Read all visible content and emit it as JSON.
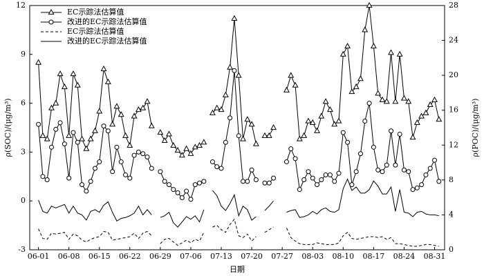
{
  "chart_data": {
    "type": "line",
    "x_label": "日期",
    "y_label": "ρ(SOC)/(μg/m³)",
    "y2_label": "ρ(POC)/(μg/m³)",
    "x": [
      0,
      1,
      2,
      3,
      4,
      5,
      6,
      7,
      8,
      9,
      10,
      11,
      12,
      13,
      14,
      15,
      16,
      17,
      18,
      19,
      20,
      21,
      22,
      23,
      24,
      25,
      26,
      27,
      28,
      29,
      30,
      31,
      32,
      33,
      34,
      35,
      36,
      37,
      38,
      39,
      40,
      41,
      42,
      43,
      44,
      45,
      46,
      47,
      48,
      49,
      50,
      51,
      52,
      53,
      54,
      55,
      56,
      57,
      58,
      59,
      60,
      61,
      62,
      63,
      64,
      65,
      66,
      67,
      68,
      69,
      70,
      71,
      72,
      73,
      74,
      75,
      76,
      77,
      78,
      79,
      80,
      81,
      82,
      83,
      84,
      85,
      86,
      87,
      88,
      89,
      90,
      91,
      92
    ],
    "xlim": [
      -2,
      93.3
    ],
    "xticks": [
      {
        "value": 0,
        "label": "06-01"
      },
      {
        "value": 7,
        "label": "06-08"
      },
      {
        "value": 14,
        "label": "06-15"
      },
      {
        "value": 21,
        "label": "06-22"
      },
      {
        "value": 28,
        "label": "06-29"
      },
      {
        "value": 35,
        "label": "07-06"
      },
      {
        "value": 42,
        "label": "07-13"
      },
      {
        "value": 49,
        "label": "07-20"
      },
      {
        "value": 56,
        "label": "07-27"
      },
      {
        "value": 63,
        "label": "08-03"
      },
      {
        "value": 70,
        "label": "08-10"
      },
      {
        "value": 77,
        "label": "08-17"
      },
      {
        "value": 84,
        "label": "08-24"
      },
      {
        "value": 91,
        "label": "08-31"
      }
    ],
    "ylim": [
      -3,
      12
    ],
    "yticks": [
      -3,
      0,
      3,
      6,
      9,
      12
    ],
    "y2lim": [
      0,
      28
    ],
    "y2ticks": [
      0,
      4,
      8,
      12,
      16,
      20,
      24,
      28
    ],
    "legend": "upper left",
    "series": [
      {
        "name": "EC示踪法估算值",
        "color": "#000000",
        "marker": "triangle",
        "dash": false,
        "axis": "y",
        "values": [
          8.5,
          4.0,
          3.8,
          5.7,
          6.0,
          7.8,
          7.0,
          4.0,
          7.8,
          7.1,
          3.8,
          3.2,
          3.8,
          4.3,
          5.5,
          8.1,
          7.3,
          4.7,
          5.8,
          5.3,
          4.0,
          3.4,
          5.2,
          5.6,
          5.7,
          6.1,
          4.6,
          null,
          4.2,
          3.7,
          4.1,
          3.4,
          3.1,
          2.8,
          3.2,
          2.9,
          3.3,
          3.4,
          3.6,
          null,
          5.4,
          5.7,
          5.6,
          6.5,
          8.2,
          11.2,
          7.7,
          3.8,
          5.0,
          4.7,
          3.5,
          null,
          4.0,
          4.0,
          4.5,
          null,
          null,
          6.8,
          7.7,
          7.1,
          3.8,
          4.0,
          4.9,
          4.8,
          4.3,
          5.2,
          6.1,
          5.6,
          4.7,
          4.9,
          9.0,
          9.5,
          6.7,
          7.0,
          7.5,
          10.5,
          12.0,
          9.5,
          6.6,
          6.2,
          6.1,
          9.1,
          6.1,
          9.0,
          6.3,
          6.1,
          3.9,
          4.8,
          5.2,
          5.4,
          5.9,
          6.2,
          5.0
        ]
      },
      {
        "name": "改进的EC示踪法估算值",
        "color": "#000000",
        "marker": "circle",
        "dash": false,
        "axis": "y",
        "values": [
          4.7,
          1.5,
          1.3,
          3.3,
          4.4,
          4.8,
          3.5,
          1.4,
          4.2,
          3.6,
          1.0,
          0.6,
          1.2,
          2.0,
          2.4,
          4.6,
          4.3,
          1.8,
          3.3,
          2.4,
          1.6,
          1.4,
          2.8,
          3.0,
          2.9,
          2.7,
          2.0,
          null,
          1.8,
          1.2,
          1.0,
          0.7,
          0.5,
          0.2,
          0.6,
          0.1,
          1.0,
          1.1,
          1.2,
          null,
          2.4,
          2.1,
          2.0,
          3.6,
          5.1,
          8.0,
          4.0,
          1.2,
          1.2,
          1.9,
          1.3,
          null,
          1.1,
          1.1,
          1.4,
          null,
          null,
          2.4,
          3.2,
          2.6,
          0.7,
          1.3,
          1.8,
          1.4,
          1.0,
          1.3,
          1.6,
          1.6,
          1.2,
          1.7,
          4.2,
          3.6,
          1.0,
          1.8,
          2.9,
          4.9,
          6.0,
          3.3,
          1.9,
          1.8,
          2.2,
          4.3,
          2.2,
          4.1,
          1.9,
          1.8,
          0.7,
          0.8,
          1.0,
          1.6,
          2.0,
          2.5,
          1.2
        ]
      },
      {
        "name": "EC示踪法估算值",
        "color": "#000000",
        "marker": "none",
        "dash": true,
        "axis": "y2",
        "values": [
          2.4,
          1.3,
          1.2,
          1.9,
          1.8,
          1.9,
          2.0,
          1.2,
          1.8,
          1.6,
          1.1,
          0.9,
          1.2,
          1.4,
          1.5,
          2.1,
          2.0,
          1.1,
          1.2,
          1.3,
          1.4,
          1.5,
          1.9,
          1.3,
          1.9,
          2.1,
          1.6,
          null,
          0.7,
          1.2,
          1.3,
          0.9,
          0.5,
          0.8,
          1.1,
          0.8,
          1.2,
          1.0,
          2.0,
          null,
          2.6,
          2.8,
          2.3,
          2.0,
          2.9,
          3.5,
          1.6,
          1.4,
          1.8,
          1.0,
          1.5,
          null,
          2.0,
          2.3,
          2.6,
          null,
          null,
          2.5,
          1.4,
          1.0,
          0.7,
          0.6,
          0.6,
          0.6,
          0.8,
          0.7,
          0.6,
          0.6,
          0.6,
          0.8,
          1.6,
          2.0,
          1.3,
          1.2,
          1.3,
          1.4,
          1.5,
          1.5,
          1.4,
          1.5,
          1.2,
          1.4,
          0.7,
          0.7,
          0.6,
          0.5,
          0.4,
          0.4,
          0.5,
          0.6,
          0.6,
          0.5,
          0.4
        ]
      },
      {
        "name": "改进的EC示踪法估算值",
        "color": "#000000",
        "marker": "none",
        "dash": false,
        "axis": "y2",
        "values": [
          5.7,
          4.4,
          4.2,
          5.0,
          4.8,
          5.0,
          5.2,
          4.2,
          5.0,
          4.2,
          4.0,
          3.4,
          4.4,
          4.6,
          4.3,
          5.1,
          5.5,
          4.3,
          3.3,
          3.6,
          3.7,
          3.9,
          4.2,
          5.0,
          4.0,
          4.6,
          4.0,
          null,
          3.7,
          3.9,
          4.3,
          3.1,
          2.6,
          3.2,
          3.8,
          3.5,
          3.9,
          3.2,
          4.6,
          null,
          6.8,
          6.2,
          5.0,
          4.5,
          5.3,
          6.3,
          3.9,
          5.0,
          4.6,
          3.4,
          3.8,
          null,
          4.5,
          5.0,
          5.6,
          null,
          null,
          4.3,
          4.5,
          4.6,
          3.7,
          3.8,
          4.0,
          4.4,
          4.1,
          4.6,
          4.8,
          4.4,
          4.3,
          4.6,
          7.0,
          8.1,
          6.8,
          7.2,
          6.5,
          6.5,
          6.9,
          7.9,
          7.3,
          6.4,
          6.4,
          7.2,
          4.4,
          6.9,
          4.3,
          4.2,
          3.8,
          4.3,
          4.4,
          4.1,
          4.0,
          4.0,
          3.9
        ]
      }
    ]
  }
}
